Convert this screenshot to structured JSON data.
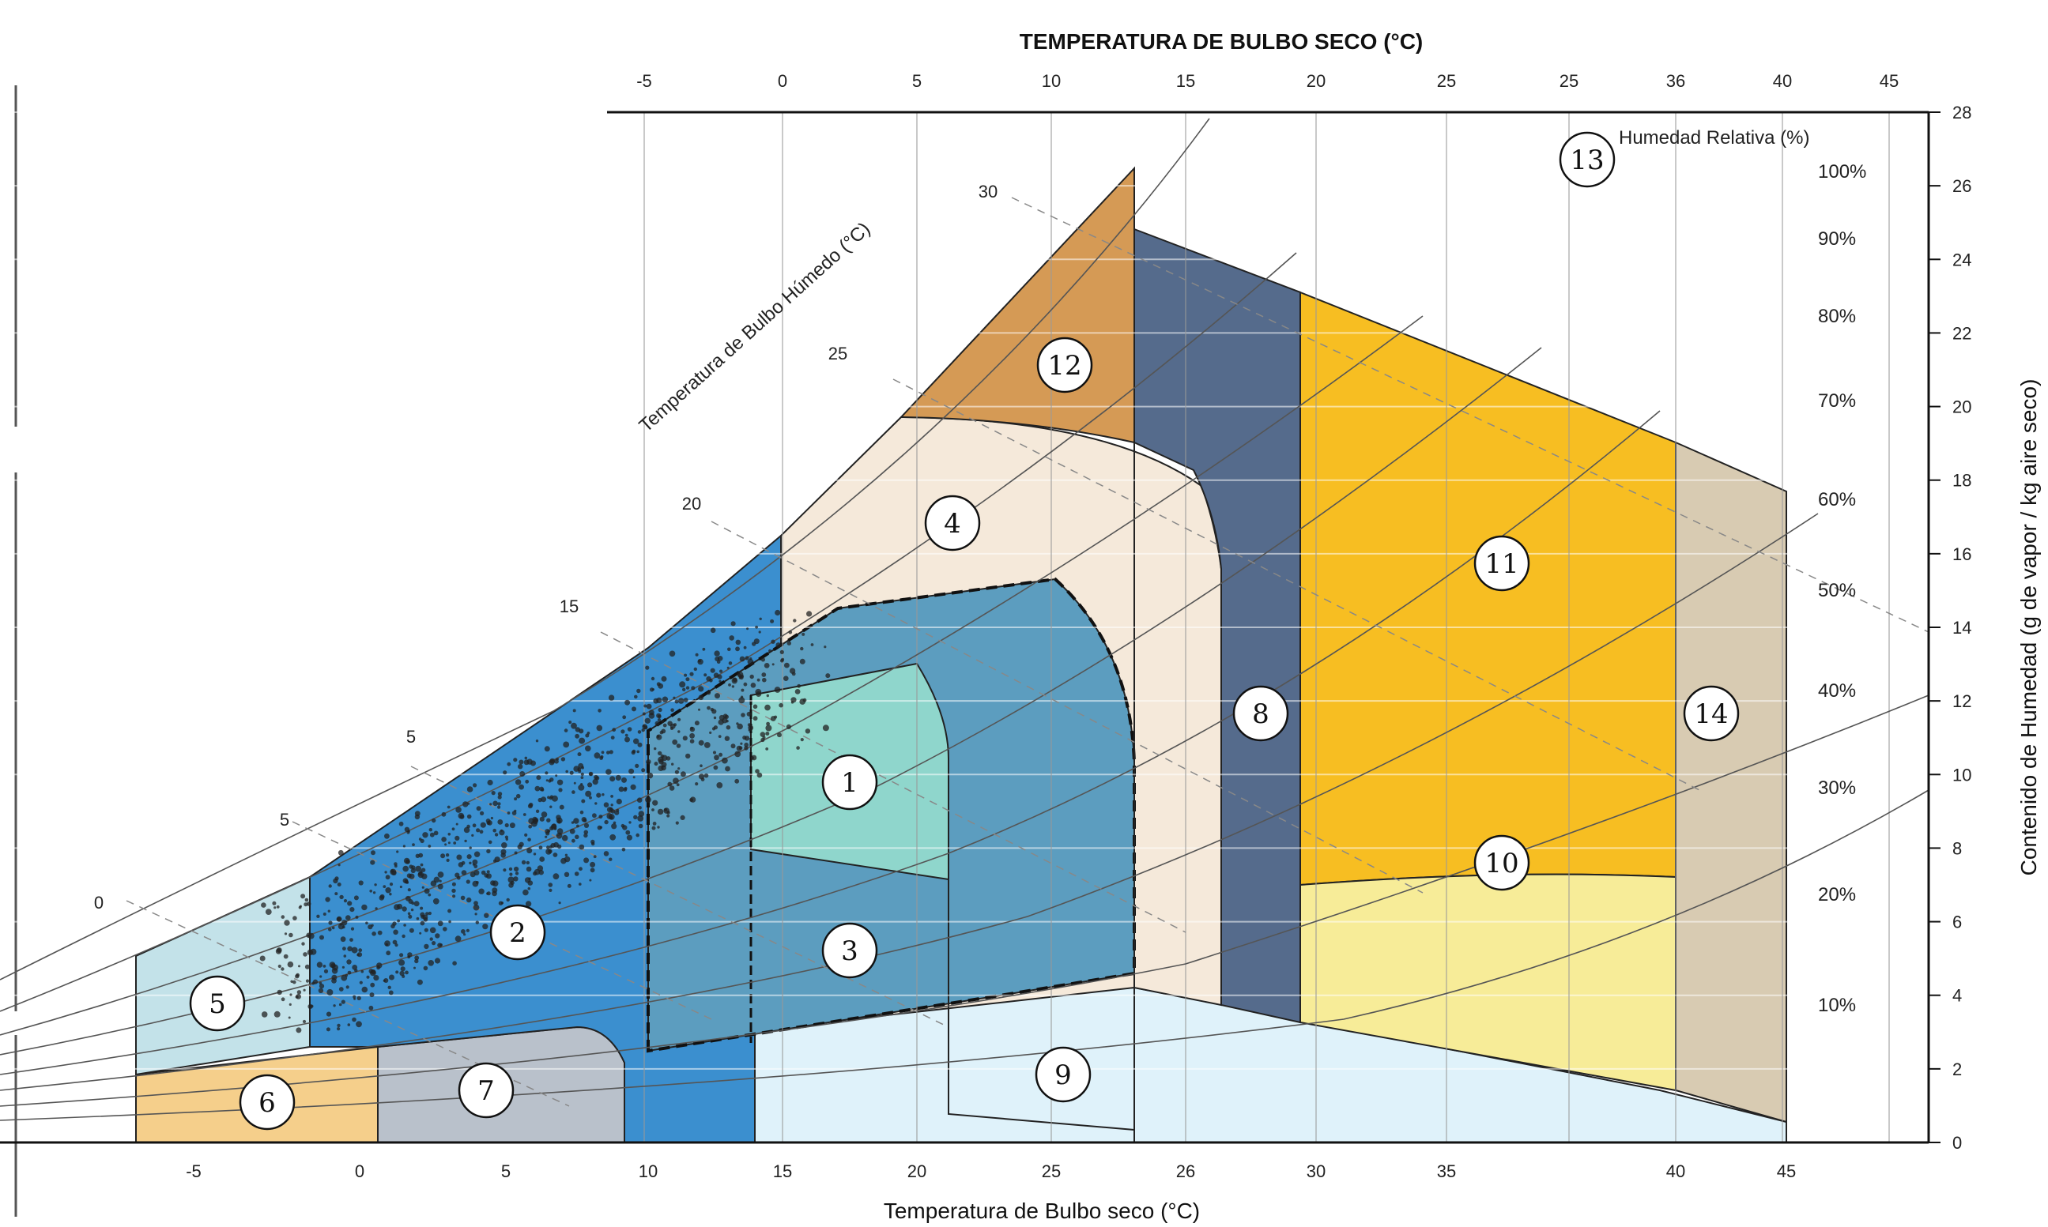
{
  "chart_data": {
    "type": "psychrometric",
    "top_axis_title": "TEMPERATURA DE BULBO SECO (°C)",
    "bottom_axis_title": "Temperatura de Bulbo seco (°C)",
    "right_axis_title": "Contenido de Humedad (g de vapor / kg aire seco)",
    "wet_bulb_title": "Temperatura de Bulbo Húmedo (°C)",
    "rh_title": "Humedad Relativa (%)",
    "top_ticks": [
      "-5",
      "0",
      "5",
      "10",
      "15",
      "20",
      "25",
      "25",
      "36",
      "40",
      "45"
    ],
    "bottom_ticks": [
      "-5",
      "0",
      "5",
      "10",
      "15",
      "20",
      "25",
      "26",
      "30",
      "35",
      "40",
      "45"
    ],
    "y_ticks": [
      "0",
      "2",
      "4",
      "6",
      "8",
      "10",
      "12",
      "14",
      "16",
      "18",
      "20",
      "22",
      "24",
      "26",
      "28"
    ],
    "rh_labels": [
      "100%",
      "90%",
      "80%",
      "70%",
      "60%",
      "50%",
      "40%",
      "30%",
      "20%",
      "10%"
    ],
    "wet_bulb_labels": [
      "30",
      "25",
      "20",
      "15",
      "5",
      "5",
      "0"
    ],
    "zones": [
      {
        "id": "1",
        "color": "#8fd6cc"
      },
      {
        "id": "2",
        "color": "#3b8fcf"
      },
      {
        "id": "3",
        "color": "#5c9dbf"
      },
      {
        "id": "4",
        "color": "#f5e9da"
      },
      {
        "id": "5",
        "color": "#c3e2e9"
      },
      {
        "id": "6",
        "color": "#f5cf8b"
      },
      {
        "id": "7",
        "color": "#b9c1cb"
      },
      {
        "id": "8",
        "color": "#556b8c"
      },
      {
        "id": "9",
        "color": "#dff2fa"
      },
      {
        "id": "10",
        "color": "#f7ec98"
      },
      {
        "id": "11",
        "color": "#f7be22"
      },
      {
        "id": "12",
        "color": "#d59a55"
      },
      {
        "id": "13",
        "color": "#ffffff"
      },
      {
        "id": "14",
        "color": "#d8cbb2"
      }
    ]
  }
}
